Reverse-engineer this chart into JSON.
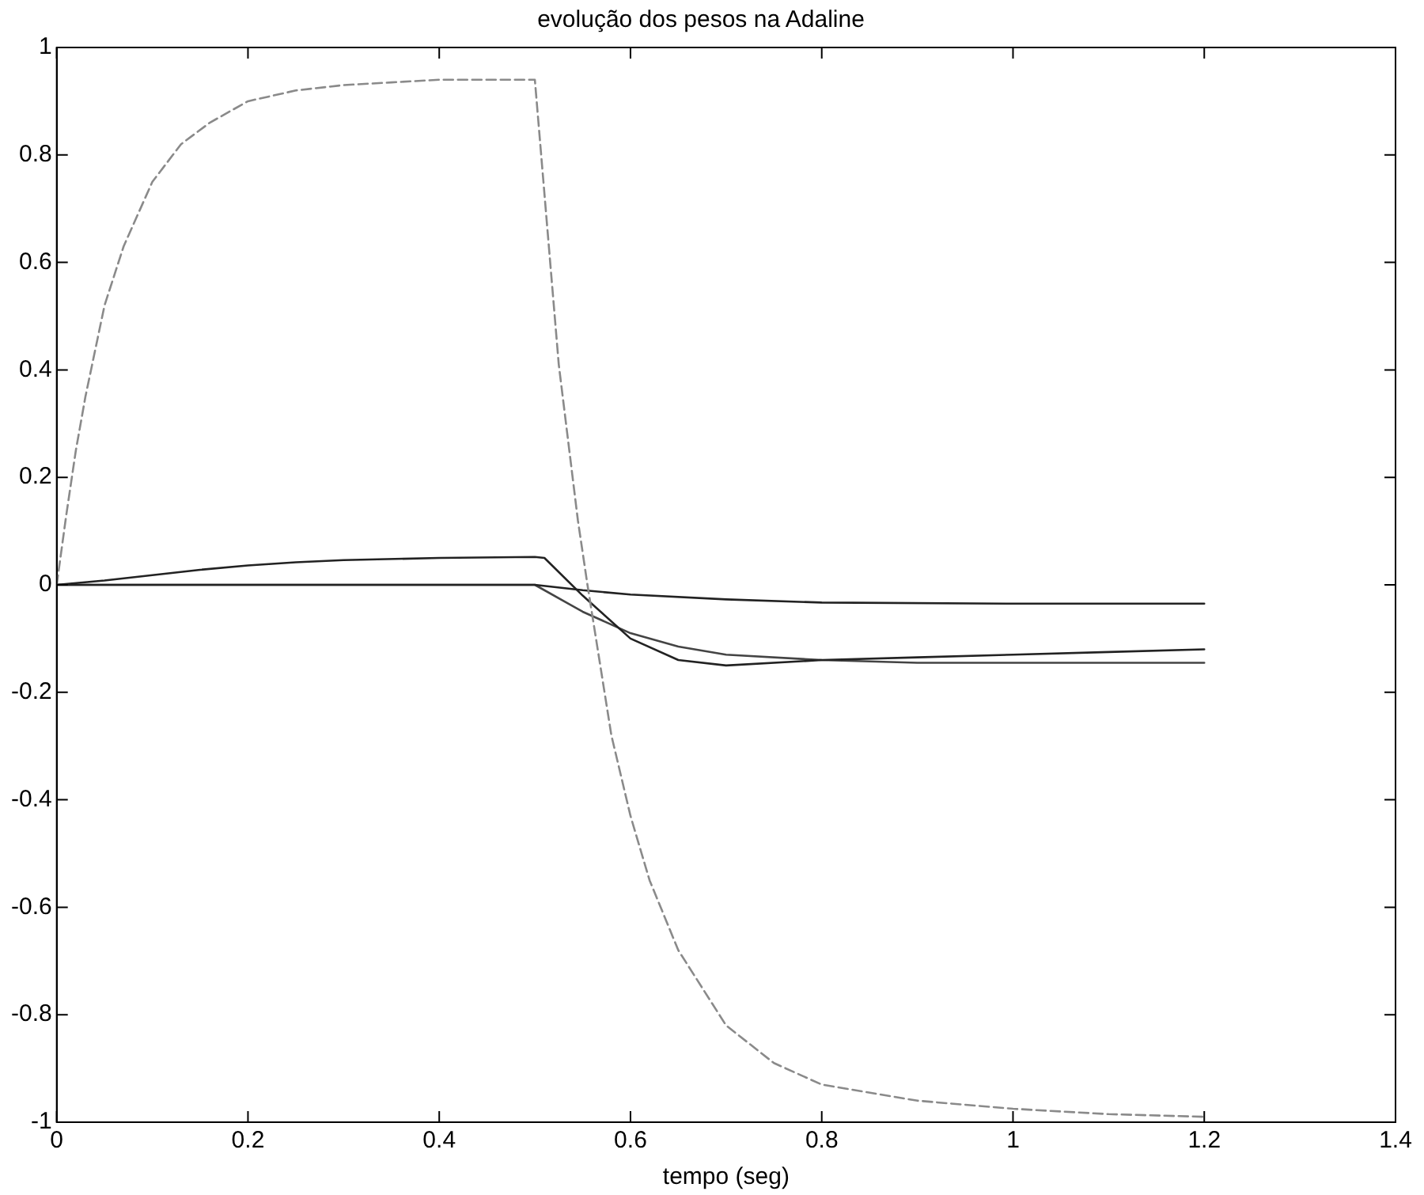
{
  "chart_data": {
    "type": "line",
    "title": "evolução dos pesos na Adaline",
    "xlabel": "tempo (seg)",
    "xlim": [
      0,
      1.4
    ],
    "xticks": [
      0,
      0.2,
      0.4,
      0.6,
      0.8,
      1,
      1.2,
      1.4
    ],
    "ylim": [
      -1,
      1
    ],
    "yticks": [
      -1,
      -0.8,
      -0.6,
      -0.4,
      -0.2,
      0,
      0.2,
      0.4,
      0.6,
      0.8,
      1
    ],
    "grid": false,
    "legend": false,
    "marker": "none",
    "series": [
      {
        "color": "#8a8a8a",
        "line_style": "dashed",
        "x": [
          0,
          0.01,
          0.02,
          0.03,
          0.05,
          0.07,
          0.1,
          0.13,
          0.16,
          0.2,
          0.25,
          0.3,
          0.35,
          0.4,
          0.45,
          0.5,
          0.525,
          0.545,
          0.555,
          0.58,
          0.6,
          0.62,
          0.65,
          0.7,
          0.75,
          0.8,
          0.9,
          1.0,
          1.1,
          1.2
        ],
        "values": [
          0,
          0.13,
          0.25,
          0.35,
          0.52,
          0.63,
          0.75,
          0.82,
          0.86,
          0.9,
          0.92,
          0.93,
          0.935,
          0.94,
          0.94,
          0.94,
          0.41,
          0.12,
          0,
          -0.28,
          -0.43,
          -0.55,
          -0.68,
          -0.82,
          -0.89,
          -0.93,
          -0.96,
          -0.975,
          -0.985,
          -0.99
        ]
      },
      {
        "color": "#222222",
        "line_style": "solid",
        "x": [
          0,
          0.05,
          0.1,
          0.15,
          0.2,
          0.25,
          0.3,
          0.4,
          0.5,
          0.51,
          0.55,
          0.6,
          0.65,
          0.7,
          0.8,
          0.9,
          1.0,
          1.1,
          1.2
        ],
        "values": [
          0,
          0.008,
          0.018,
          0.028,
          0.036,
          0.042,
          0.046,
          0.05,
          0.052,
          0.05,
          -0.02,
          -0.1,
          -0.14,
          -0.15,
          -0.14,
          -0.135,
          -0.13,
          -0.125,
          -0.12
        ]
      },
      {
        "color": "#222222",
        "line_style": "solid",
        "x": [
          0,
          0.5,
          0.55,
          0.6,
          0.7,
          0.8,
          1.0,
          1.2
        ],
        "values": [
          0,
          0,
          -0.01,
          -0.018,
          -0.027,
          -0.033,
          -0.035,
          -0.035
        ]
      },
      {
        "color": "#444444",
        "line_style": "solid",
        "x": [
          0,
          0.5,
          0.55,
          0.6,
          0.65,
          0.7,
          0.8,
          0.9,
          1.0,
          1.2
        ],
        "values": [
          0,
          0,
          -0.05,
          -0.09,
          -0.115,
          -0.13,
          -0.14,
          -0.145,
          -0.145,
          -0.145
        ]
      }
    ]
  }
}
